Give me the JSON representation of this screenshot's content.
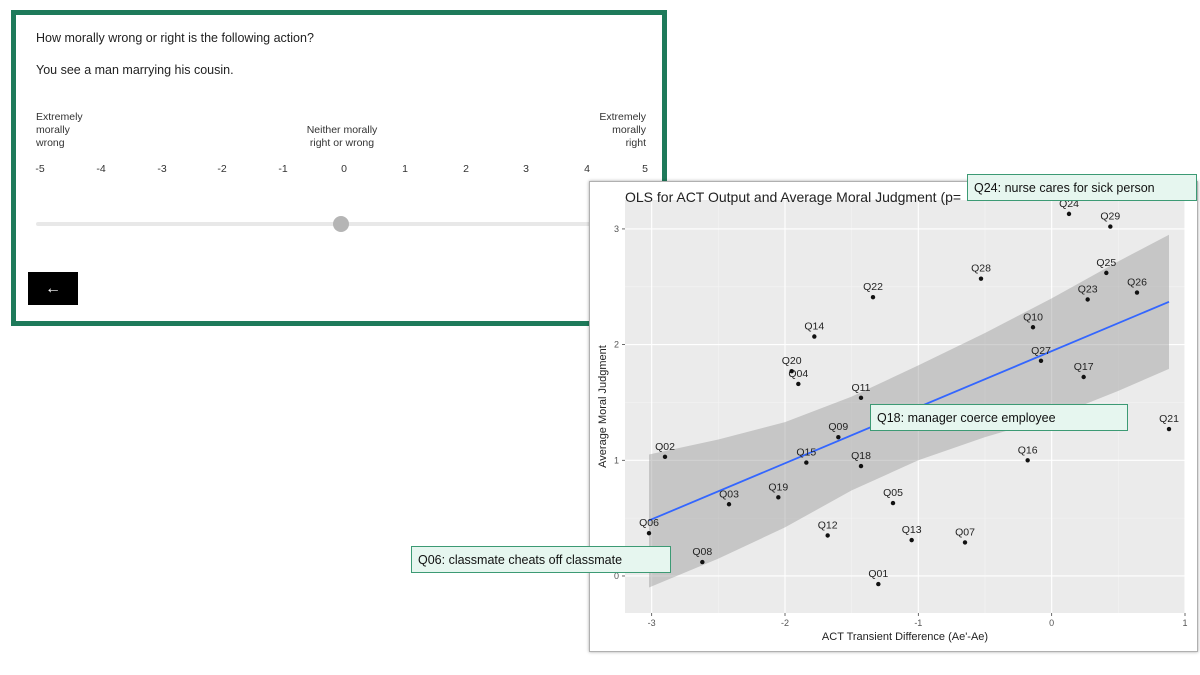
{
  "survey": {
    "question": "How morally wrong or right is the following action?",
    "action": "You see a man marrying his cousin.",
    "anchor_left": [
      "Extremely",
      "morally",
      "wrong"
    ],
    "anchor_mid": [
      "Neither morally",
      "right or wrong"
    ],
    "anchor_right": [
      "Extremely",
      "morally",
      "right"
    ],
    "scale": [
      "-5",
      "-4",
      "-3",
      "-2",
      "-1",
      "0",
      "1",
      "2",
      "3",
      "4",
      "5"
    ],
    "slider_value": 0,
    "back_label": "←"
  },
  "chart_data": {
    "type": "scatter",
    "title": "OLS for ACT Output and Average Moral Judgment (p=",
    "xlabel": "ACT Transient Difference (Ae'-Ae)",
    "ylabel": "Average Moral Judgment",
    "xlim": [
      -3.2,
      1.0
    ],
    "ylim": [
      -0.32,
      3.25
    ],
    "xticks": [
      -3,
      -2,
      -1,
      0,
      1
    ],
    "yticks": [
      0,
      1,
      2,
      3
    ],
    "points": [
      {
        "label": "Q01",
        "x": -1.3,
        "y": -0.07
      },
      {
        "label": "Q02",
        "x": -2.9,
        "y": 1.03
      },
      {
        "label": "Q03",
        "x": -2.42,
        "y": 0.62
      },
      {
        "label": "Q04",
        "x": -1.9,
        "y": 1.66
      },
      {
        "label": "Q05",
        "x": -1.19,
        "y": 0.63
      },
      {
        "label": "Q06",
        "x": -3.02,
        "y": 0.37
      },
      {
        "label": "Q07",
        "x": -0.65,
        "y": 0.29
      },
      {
        "label": "Q08",
        "x": -2.62,
        "y": 0.12
      },
      {
        "label": "Q09",
        "x": -1.6,
        "y": 1.2
      },
      {
        "label": "Q10",
        "x": -0.14,
        "y": 2.15
      },
      {
        "label": "Q11",
        "x": -1.43,
        "y": 1.54
      },
      {
        "label": "Q12",
        "x": -1.68,
        "y": 0.35
      },
      {
        "label": "Q13",
        "x": -1.05,
        "y": 0.31
      },
      {
        "label": "Q14",
        "x": -1.78,
        "y": 2.07
      },
      {
        "label": "Q15",
        "x": -1.84,
        "y": 0.98
      },
      {
        "label": "Q16",
        "x": -0.18,
        "y": 1.0
      },
      {
        "label": "Q17",
        "x": 0.24,
        "y": 1.72
      },
      {
        "label": "Q18",
        "x": -1.43,
        "y": 0.95
      },
      {
        "label": "Q19",
        "x": -2.05,
        "y": 0.68
      },
      {
        "label": "Q20",
        "x": -1.95,
        "y": 1.77
      },
      {
        "label": "Q21",
        "x": 0.88,
        "y": 1.27
      },
      {
        "label": "Q22",
        "x": -1.34,
        "y": 2.41
      },
      {
        "label": "Q23",
        "x": 0.27,
        "y": 2.39
      },
      {
        "label": "Q24",
        "x": 0.13,
        "y": 3.13
      },
      {
        "label": "Q25",
        "x": 0.41,
        "y": 2.62
      },
      {
        "label": "Q26",
        "x": 0.64,
        "y": 2.45
      },
      {
        "label": "Q27",
        "x": -0.08,
        "y": 1.86
      },
      {
        "label": "Q28",
        "x": -0.53,
        "y": 2.57
      },
      {
        "label": "Q29",
        "x": 0.44,
        "y": 3.02
      }
    ],
    "regression": {
      "color": "#3366ff",
      "x": [
        -3.02,
        0.88
      ],
      "y": [
        0.48,
        2.37
      ]
    },
    "confidence_band": {
      "x": [
        -3.02,
        -2.5,
        -2.0,
        -1.5,
        -1.0,
        -0.5,
        0.0,
        0.5,
        0.88
      ],
      "upper": [
        1.05,
        1.18,
        1.33,
        1.55,
        1.82,
        2.1,
        2.4,
        2.72,
        2.95
      ],
      "lower": [
        -0.1,
        0.15,
        0.42,
        0.74,
        1.0,
        1.2,
        1.37,
        1.6,
        1.79
      ]
    },
    "annotations": [
      {
        "label": "Q24",
        "text": "Q24: nurse cares for sick person"
      },
      {
        "label": "Q18",
        "text": "Q18: manager coerce employee"
      },
      {
        "label": "Q06",
        "text": "Q06: classmate cheats off classmate"
      }
    ]
  }
}
